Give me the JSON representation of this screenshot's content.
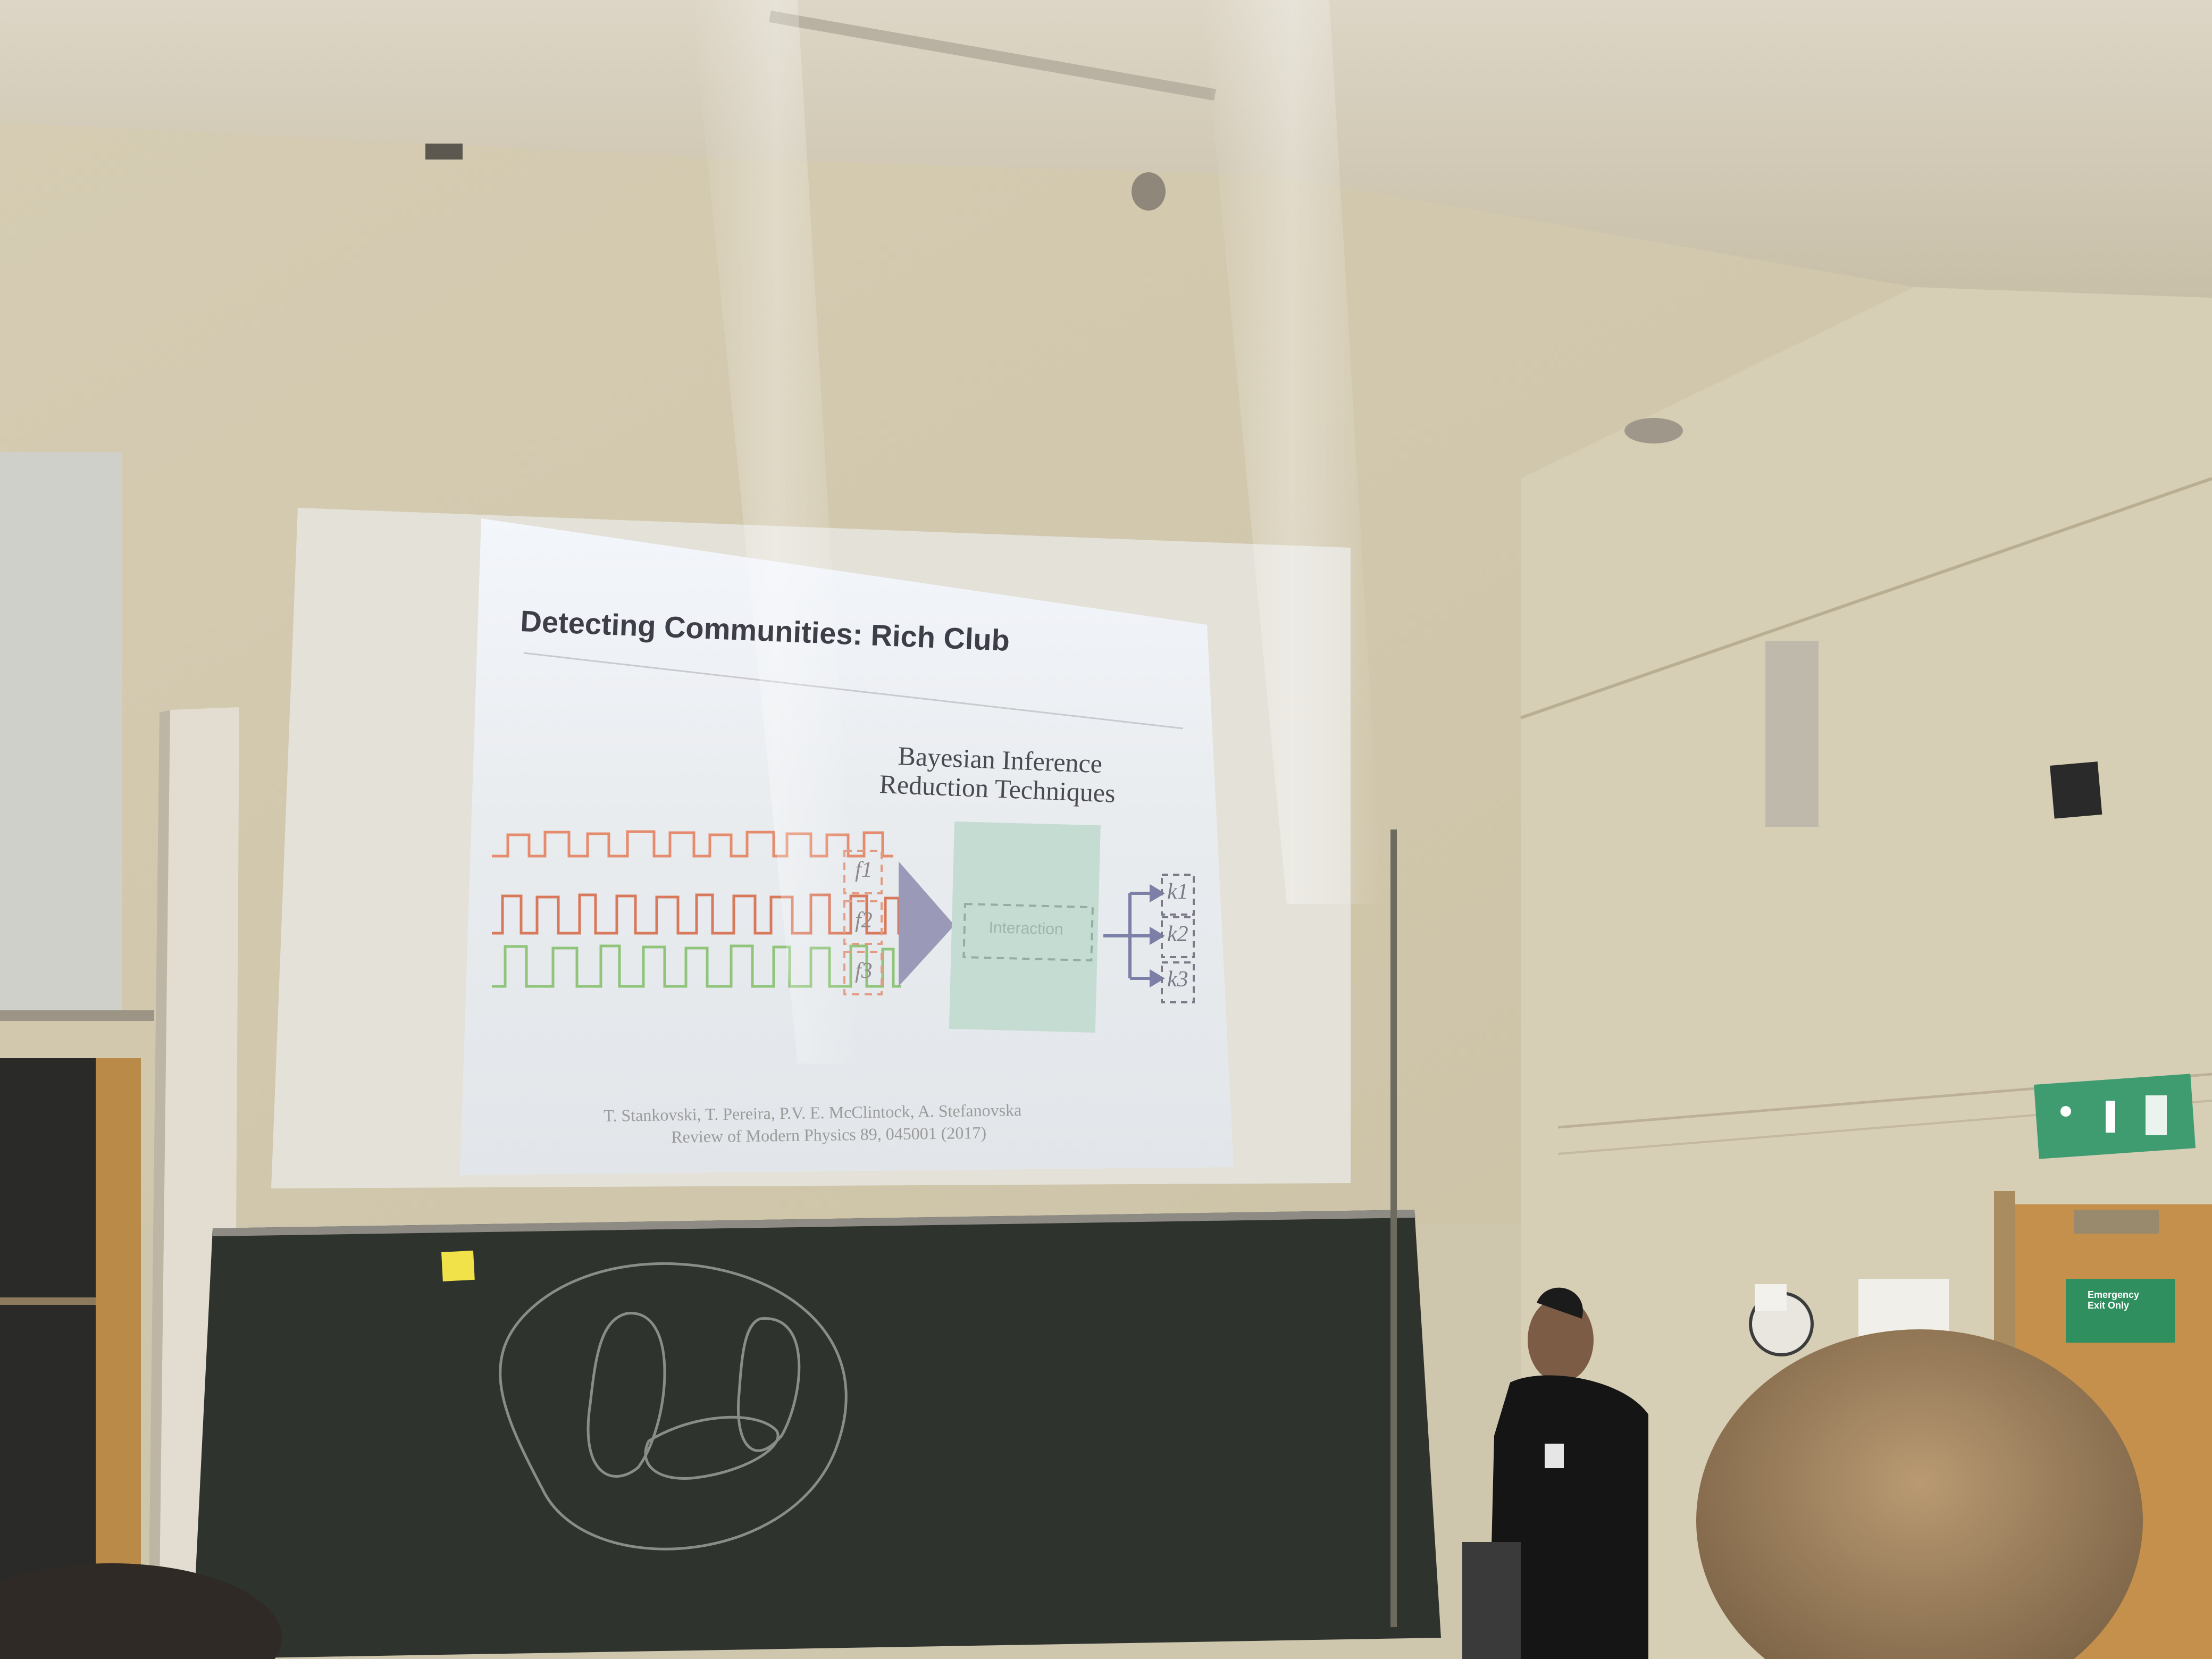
{
  "slide": {
    "title": "Detecting Communities: Rich Club",
    "subtitle_line1": "Bayesian Inference",
    "subtitle_line2": "Reduction Techniques",
    "box_label": "Interaction",
    "inputs": [
      "f1",
      "f2",
      "f3"
    ],
    "outputs": [
      "k1",
      "k2",
      "k3"
    ],
    "citation_line1": "T. Stankovski, T. Pereira, P.V. E. McClintock, A. Stefanovska",
    "citation_line2": "Review of Modern Physics 89,  045001 (2017)",
    "signal_colors": [
      "#e58c6e",
      "#d9795c",
      "#8fc47a"
    ]
  },
  "room": {
    "emergency_sign": "Emergency Exit Only"
  }
}
